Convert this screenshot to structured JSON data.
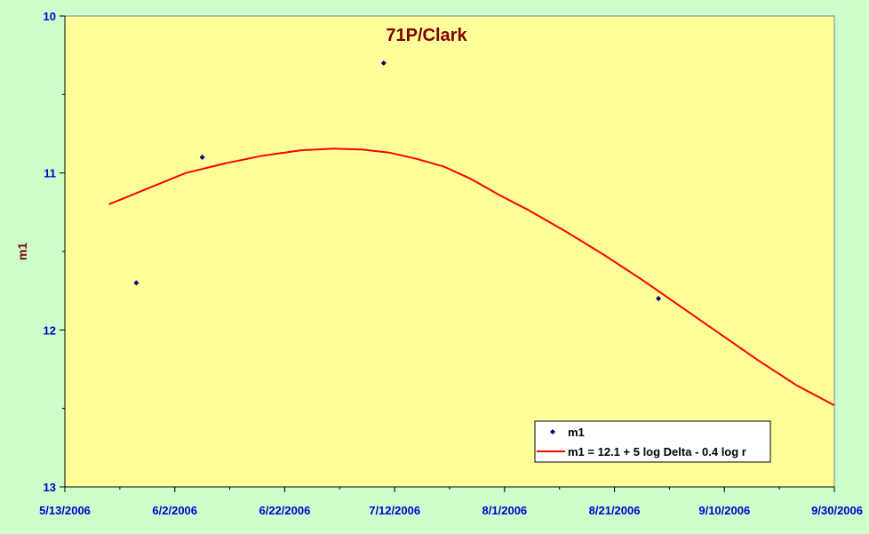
{
  "chart_data": {
    "type": "scatter",
    "title": "71P/Clark",
    "xlabel": "",
    "ylabel": "m1",
    "x_axis": {
      "type": "date",
      "min": "2006-05-13",
      "max": "2006-09-30",
      "tick_labels": [
        "5/13/2006",
        "6/2/2006",
        "6/22/2006",
        "7/12/2006",
        "8/1/2006",
        "8/21/2006",
        "9/10/2006",
        "9/30/2006"
      ],
      "tick_dates": [
        "2006-05-13",
        "2006-06-02",
        "2006-06-22",
        "2006-07-12",
        "2006-08-01",
        "2006-08-21",
        "2006-09-10",
        "2006-09-30"
      ]
    },
    "y_axis": {
      "reversed": true,
      "min": 10,
      "max": 13,
      "ticks": [
        10,
        11,
        12,
        13
      ],
      "tick_labels": [
        "10",
        "11",
        "12",
        "13"
      ]
    },
    "grid": false,
    "legend_position": "bottom-right",
    "series": [
      {
        "name": "m1",
        "kind": "points",
        "color": "#000080",
        "points": [
          {
            "x": "2006-05-26",
            "y": 11.7
          },
          {
            "x": "2006-06-07",
            "y": 10.9
          },
          {
            "x": "2006-07-10",
            "y": 10.3
          },
          {
            "x": "2006-08-29",
            "y": 11.8
          }
        ]
      },
      {
        "name": "m1 = 12.1 + 5 log Delta - 0.4 log r",
        "kind": "line",
        "color": "#ff0000",
        "points": [
          {
            "x": "2006-05-21",
            "y": 11.2
          },
          {
            "x": "2006-05-28",
            "y": 11.1
          },
          {
            "x": "2006-06-04",
            "y": 11.0
          },
          {
            "x": "2006-06-11",
            "y": 10.94
          },
          {
            "x": "2006-06-18",
            "y": 10.89
          },
          {
            "x": "2006-06-25",
            "y": 10.855
          },
          {
            "x": "2006-07-01",
            "y": 10.845
          },
          {
            "x": "2006-07-06",
            "y": 10.85
          },
          {
            "x": "2006-07-11",
            "y": 10.87
          },
          {
            "x": "2006-07-16",
            "y": 10.91
          },
          {
            "x": "2006-07-21",
            "y": 10.96
          },
          {
            "x": "2006-07-26",
            "y": 11.04
          },
          {
            "x": "2006-07-31",
            "y": 11.14
          },
          {
            "x": "2006-08-05",
            "y": 11.23
          },
          {
            "x": "2006-08-12",
            "y": 11.37
          },
          {
            "x": "2006-08-19",
            "y": 11.52
          },
          {
            "x": "2006-08-26",
            "y": 11.68
          },
          {
            "x": "2006-09-02",
            "y": 11.85
          },
          {
            "x": "2006-09-09",
            "y": 12.02
          },
          {
            "x": "2006-09-16",
            "y": 12.19
          },
          {
            "x": "2006-09-23",
            "y": 12.35
          },
          {
            "x": "2006-09-30",
            "y": 12.48
          }
        ]
      }
    ],
    "colors": {
      "page_background": "#ccffcc",
      "plot_background": "#ffff99",
      "axis": "#000000",
      "tick_label": "#0000cc",
      "title": "#800000",
      "axis_title": "#800000"
    }
  }
}
